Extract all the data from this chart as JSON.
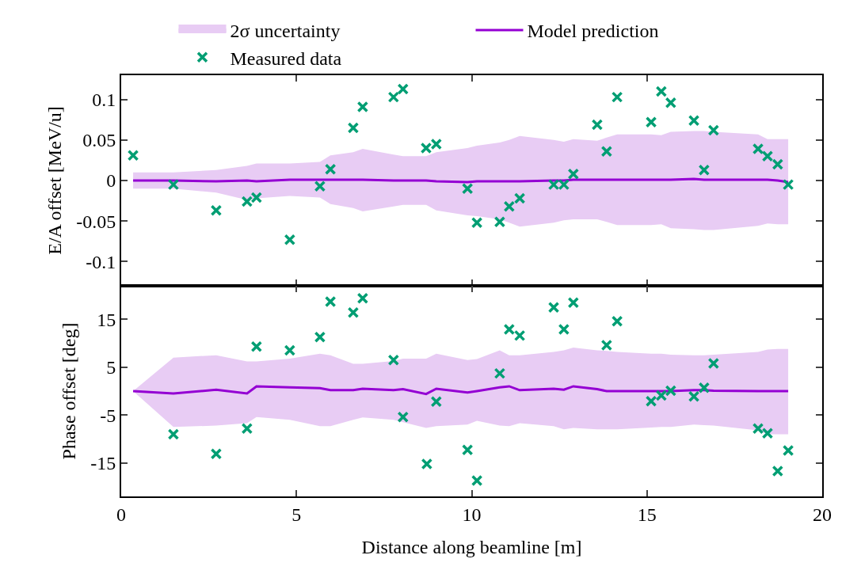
{
  "chart_data": [
    {
      "type": "scatter",
      "ylabel": "E/A offset [MeV/u]",
      "xlim": [
        0,
        20
      ],
      "xticks": [
        0,
        5,
        10,
        15,
        20
      ],
      "ylim": [
        -0.13,
        0.13
      ],
      "yticks": [
        -0.1,
        -0.05,
        0,
        0.05,
        0.1
      ],
      "tick_labels": "y",
      "legend": "top",
      "series": [
        {
          "name": "2σ uncertainty",
          "type": "area",
          "color": "#e8ccf4"
        },
        {
          "name": "Model prediction",
          "type": "line",
          "color": "#9400d3",
          "marker": "none",
          "line_style": "solid",
          "x": [
            0.34,
            1.49,
            2.71,
            3.59,
            3.86,
            4.81,
            5.67,
            5.97,
            6.62,
            6.89,
            7.77,
            8.04,
            8.7,
            8.99,
            9.88,
            10.15,
            10.8,
            11.07,
            11.37,
            12.34,
            12.63,
            12.9,
            13.58,
            13.85,
            14.15,
            15.12,
            15.41,
            15.68,
            16.34,
            16.63,
            16.9,
            18.17,
            18.44,
            18.73,
            19.03
          ],
          "values": [
            0,
            0,
            -0.001,
            0,
            -0.001,
            0.001,
            0.001,
            0.001,
            0.001,
            0.001,
            0,
            0,
            0,
            -0.001,
            -0.002,
            -0.001,
            -0.001,
            -0.001,
            -0.001,
            0,
            0,
            0.001,
            0.001,
            0.001,
            0.001,
            0.001,
            0.001,
            0.001,
            0.002,
            0.001,
            0.001,
            0.001,
            0.001,
            0,
            -0.002
          ],
          "lower": [
            -0.01,
            -0.01,
            -0.015,
            -0.024,
            -0.022,
            -0.019,
            -0.021,
            -0.029,
            -0.034,
            -0.038,
            -0.032,
            -0.03,
            -0.03,
            -0.037,
            -0.043,
            -0.044,
            -0.048,
            -0.052,
            -0.057,
            -0.052,
            -0.049,
            -0.048,
            -0.048,
            -0.051,
            -0.055,
            -0.055,
            -0.054,
            -0.059,
            -0.06,
            -0.061,
            -0.061,
            -0.056,
            -0.053,
            -0.054,
            -0.054
          ],
          "upper": [
            0.01,
            0.01,
            0.013,
            0.018,
            0.021,
            0.021,
            0.023,
            0.031,
            0.035,
            0.039,
            0.032,
            0.03,
            0.03,
            0.035,
            0.04,
            0.043,
            0.047,
            0.05,
            0.055,
            0.05,
            0.048,
            0.051,
            0.049,
            0.053,
            0.057,
            0.057,
            0.056,
            0.06,
            0.061,
            0.061,
            0.06,
            0.057,
            0.051,
            0.051,
            0.051
          ]
        },
        {
          "name": "Measured data",
          "type": "scatter",
          "color": "#009e73",
          "marker": "cross",
          "x": [
            0.34,
            1.49,
            2.71,
            3.59,
            3.86,
            4.81,
            5.67,
            5.97,
            6.62,
            6.89,
            7.77,
            8.04,
            8.7,
            8.99,
            9.88,
            10.15,
            10.8,
            11.07,
            11.37,
            12.34,
            12.63,
            12.9,
            13.58,
            13.85,
            14.15,
            15.12,
            15.41,
            15.68,
            16.34,
            16.63,
            16.9,
            18.17,
            18.44,
            18.73,
            19.03
          ],
          "values": [
            0.031,
            -0.005,
            -0.037,
            -0.026,
            -0.021,
            -0.073,
            -0.007,
            0.014,
            0.065,
            0.091,
            0.103,
            0.113,
            0.04,
            0.045,
            -0.01,
            -0.052,
            -0.051,
            -0.032,
            -0.022,
            -0.005,
            -0.005,
            0.008,
            0.069,
            0.036,
            0.103,
            0.072,
            0.11,
            0.096,
            0.074,
            0.013,
            0.062,
            0.039,
            0.03,
            0.02,
            -0.005
          ]
        }
      ]
    },
    {
      "type": "scatter",
      "ylabel": "Phase offset [deg]",
      "xlabel": "Distance along beamline [m]",
      "xlim": [
        0,
        20
      ],
      "xticks": [
        0,
        5,
        10,
        15,
        20
      ],
      "ylim": [
        -22,
        22
      ],
      "yticks": [
        -15,
        -5,
        5,
        15
      ],
      "series": [
        {
          "type": "area",
          "color": "#e8ccf4"
        },
        {
          "type": "line",
          "color": "#9400d3",
          "marker": "none",
          "line_style": "solid",
          "x": [
            0.34,
            1.49,
            2.71,
            3.59,
            3.86,
            4.81,
            5.67,
            5.97,
            6.62,
            6.89,
            7.77,
            8.04,
            8.7,
            8.99,
            9.88,
            10.15,
            10.8,
            11.07,
            11.37,
            12.34,
            12.63,
            12.9,
            13.58,
            13.85,
            14.15,
            15.12,
            15.41,
            15.68,
            16.34,
            16.63,
            16.9,
            18.17,
            18.44,
            18.73,
            19.03
          ],
          "values": [
            0,
            -0.5,
            0.3,
            -0.5,
            1.0,
            0.8,
            0.6,
            0.2,
            0.2,
            0.5,
            0.2,
            0.4,
            -0.6,
            0.5,
            -0.3,
            0,
            0.8,
            1.0,
            0.2,
            0.5,
            0.3,
            1.0,
            0.4,
            0,
            0,
            0,
            0,
            0,
            0.2,
            0.2,
            0.1,
            0,
            0,
            0,
            0
          ],
          "lower": [
            0,
            -7.5,
            -7.2,
            -6.7,
            -5.4,
            -6.0,
            -7.3,
            -7.3,
            -6.0,
            -5.5,
            -6.0,
            -6.5,
            -7.7,
            -7.3,
            -7.0,
            -6.2,
            -7.2,
            -7.3,
            -6.7,
            -7.3,
            -8.0,
            -7.7,
            -8.0,
            -8.0,
            -8.0,
            -7.6,
            -7.5,
            -7.5,
            -7.0,
            -7.1,
            -7.2,
            -8.2,
            -9.0,
            -9.0,
            -9.0
          ],
          "upper": [
            0,
            7.0,
            7.5,
            6.2,
            6.2,
            6.8,
            7.8,
            7.5,
            5.7,
            5.7,
            6.3,
            6.8,
            6.8,
            7.8,
            6.5,
            6.7,
            8.5,
            7.5,
            7.5,
            8.2,
            8.5,
            9.1,
            8.5,
            8.4,
            8.2,
            7.8,
            7.8,
            7.6,
            7.5,
            7.5,
            7.6,
            8.2,
            8.7,
            8.8,
            8.8
          ]
        },
        {
          "type": "scatter",
          "color": "#009e73",
          "marker": "cross",
          "x": [
            1.49,
            2.71,
            3.59,
            3.86,
            4.81,
            5.67,
            5.97,
            6.62,
            6.89,
            7.77,
            8.04,
            8.72,
            8.99,
            9.88,
            10.15,
            10.8,
            11.07,
            11.37,
            12.34,
            12.63,
            12.9,
            13.85,
            14.15,
            15.12,
            15.41,
            15.68,
            16.34,
            16.63,
            16.9,
            18.17,
            18.44,
            18.73,
            19.03
          ],
          "values": [
            -9.0,
            -13.1,
            -7.8,
            9.3,
            8.5,
            11.3,
            18.7,
            16.4,
            19.4,
            6.5,
            -5.4,
            -15.2,
            -2.2,
            -12.3,
            -18.7,
            3.7,
            12.9,
            11.6,
            17.5,
            12.9,
            18.5,
            9.6,
            14.6,
            -2.1,
            -0.9,
            0.1,
            -1.1,
            0.7,
            5.8,
            -7.8,
            -8.8,
            -16.7,
            -12.4
          ]
        }
      ]
    }
  ]
}
